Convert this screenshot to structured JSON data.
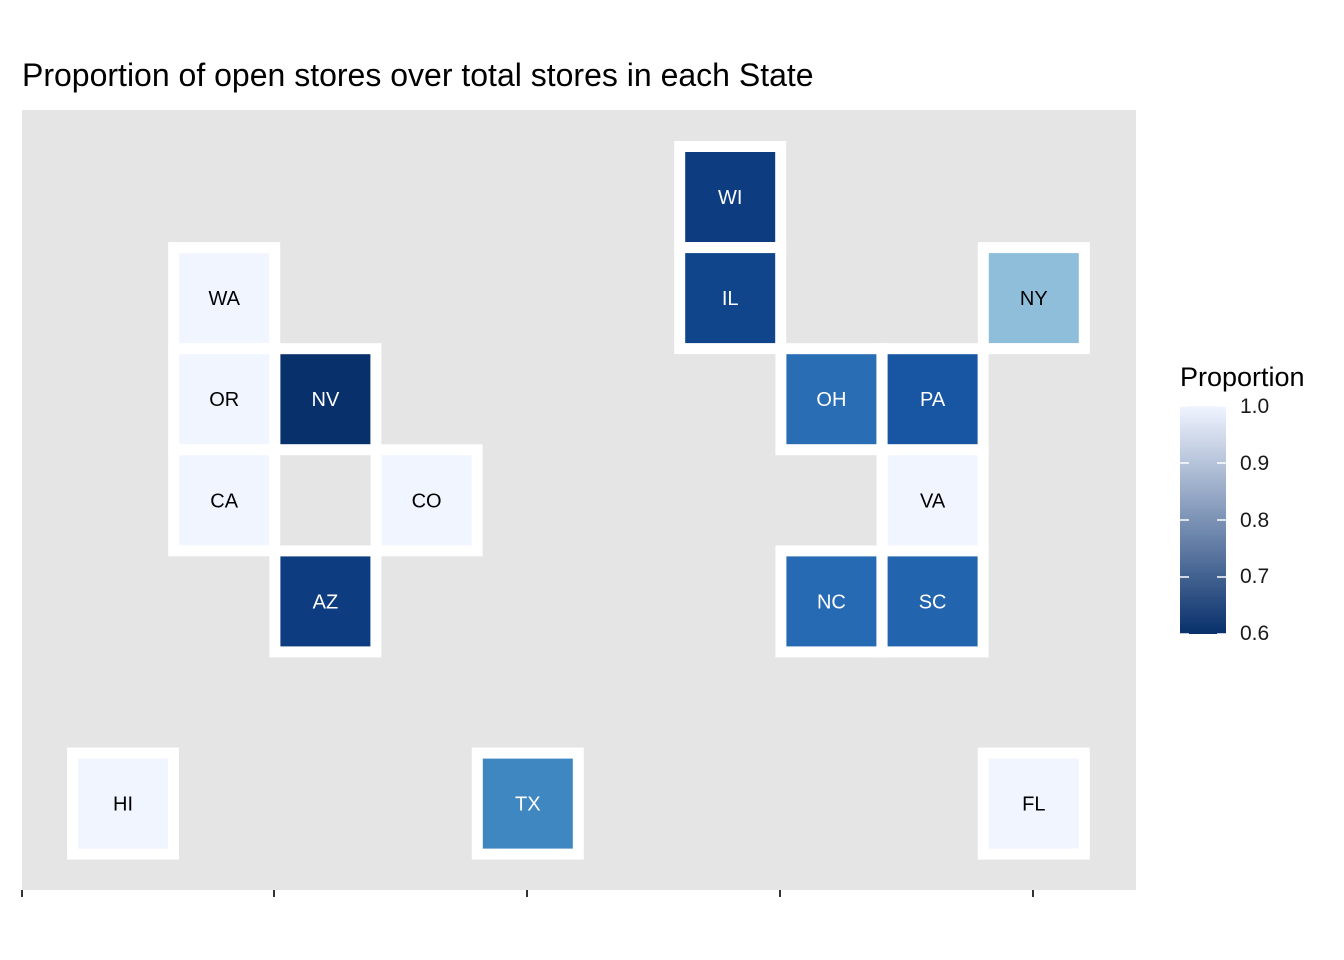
{
  "chart_data": {
    "type": "heatmap",
    "title": "Proportion of open stores over total stores in each State",
    "legend": {
      "title": "Proportion",
      "placement": "right",
      "ticks": [
        "1.0",
        "0.9",
        "0.8",
        "0.7",
        "0.6"
      ],
      "range": [
        0.6,
        1.0
      ],
      "color_low": "#08306b",
      "color_high": "#f0f5ff"
    },
    "tiles": [
      {
        "state": "WI",
        "col": 7,
        "row": 1,
        "proportion": 0.62
      },
      {
        "state": "WA",
        "col": 2,
        "row": 2,
        "proportion": 1.0
      },
      {
        "state": "IL",
        "col": 7,
        "row": 2,
        "proportion": 0.63
      },
      {
        "state": "NY",
        "col": 10,
        "row": 2,
        "proportion": 0.88
      },
      {
        "state": "OR",
        "col": 2,
        "row": 3,
        "proportion": 1.0
      },
      {
        "state": "NV",
        "col": 3,
        "row": 3,
        "proportion": 0.6
      },
      {
        "state": "OH",
        "col": 8,
        "row": 3,
        "proportion": 0.71
      },
      {
        "state": "PA",
        "col": 9,
        "row": 3,
        "proportion": 0.66
      },
      {
        "state": "CA",
        "col": 2,
        "row": 4,
        "proportion": 1.0
      },
      {
        "state": "CO",
        "col": 4,
        "row": 4,
        "proportion": 1.0
      },
      {
        "state": "VA",
        "col": 9,
        "row": 4,
        "proportion": 1.0
      },
      {
        "state": "AZ",
        "col": 3,
        "row": 5,
        "proportion": 0.62
      },
      {
        "state": "NC",
        "col": 8,
        "row": 5,
        "proportion": 0.7
      },
      {
        "state": "SC",
        "col": 9,
        "row": 5,
        "proportion": 0.69
      },
      {
        "state": "HI",
        "col": 1,
        "row": 7,
        "proportion": 1.0
      },
      {
        "state": "TX",
        "col": 5,
        "row": 7,
        "proportion": 0.77
      },
      {
        "state": "FL",
        "col": 10,
        "row": 7,
        "proportion": 1.0
      }
    ]
  }
}
